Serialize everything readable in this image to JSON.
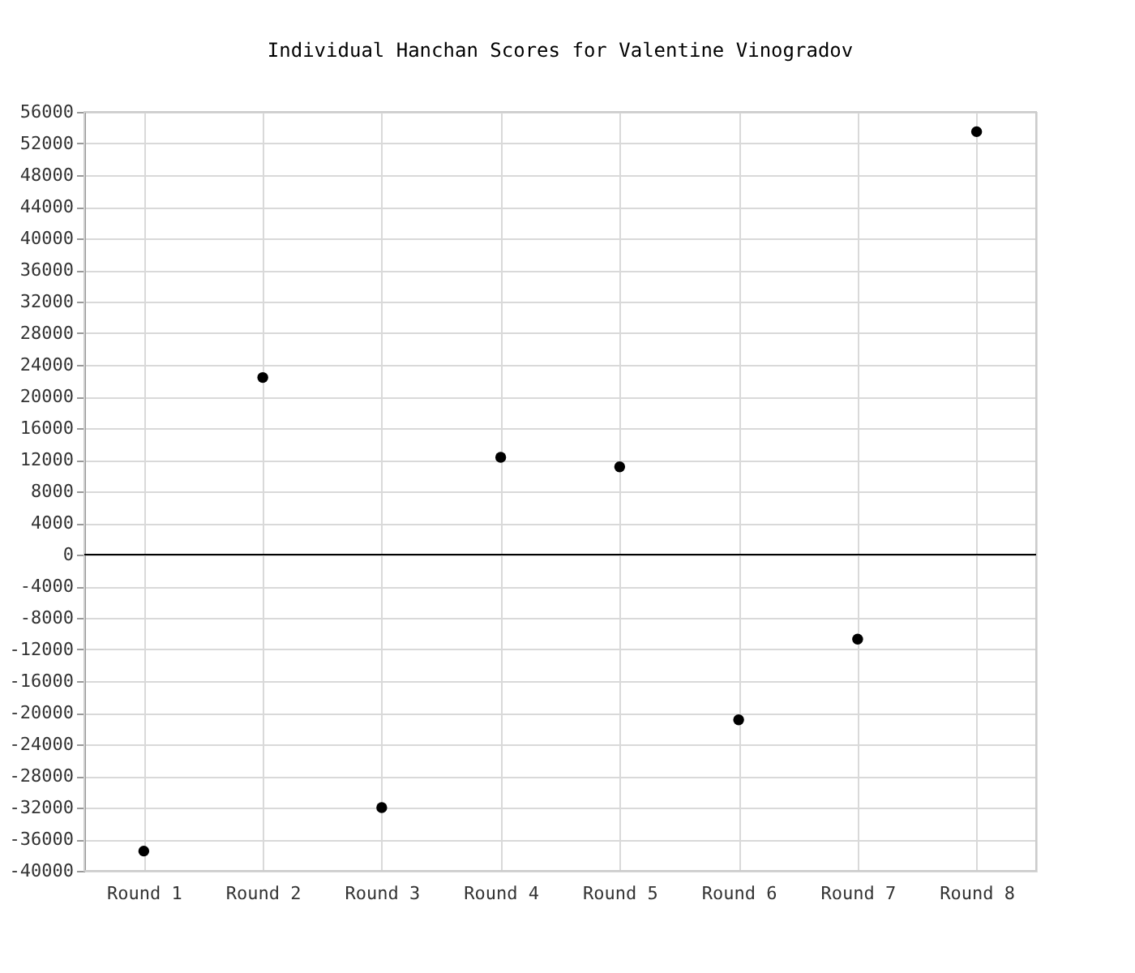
{
  "chart_data": {
    "type": "scatter",
    "title": "Individual Hanchan Scores for Valentine Vinogradov",
    "categories": [
      "Round 1",
      "Round 2",
      "Round 3",
      "Round 4",
      "Round 5",
      "Round 6",
      "Round 7",
      "Round 8"
    ],
    "series": [
      {
        "color": "#000000",
        "values": [
          -37500,
          22400,
          -32000,
          12300,
          11100,
          -20900,
          -10700,
          53500
        ]
      }
    ],
    "ylim": [
      -40000,
      56000
    ],
    "yticks": [
      -40000,
      -36000,
      -32000,
      -28000,
      -24000,
      -20000,
      -16000,
      -12000,
      -8000,
      -4000,
      0,
      4000,
      8000,
      12000,
      16000,
      20000,
      24000,
      28000,
      32000,
      36000,
      40000,
      44000,
      48000,
      52000,
      56000
    ],
    "ref_lines": [
      {
        "axis": "y",
        "value": 0,
        "color": "#000000"
      }
    ],
    "grid": true,
    "marker": "circle",
    "legend": false
  }
}
